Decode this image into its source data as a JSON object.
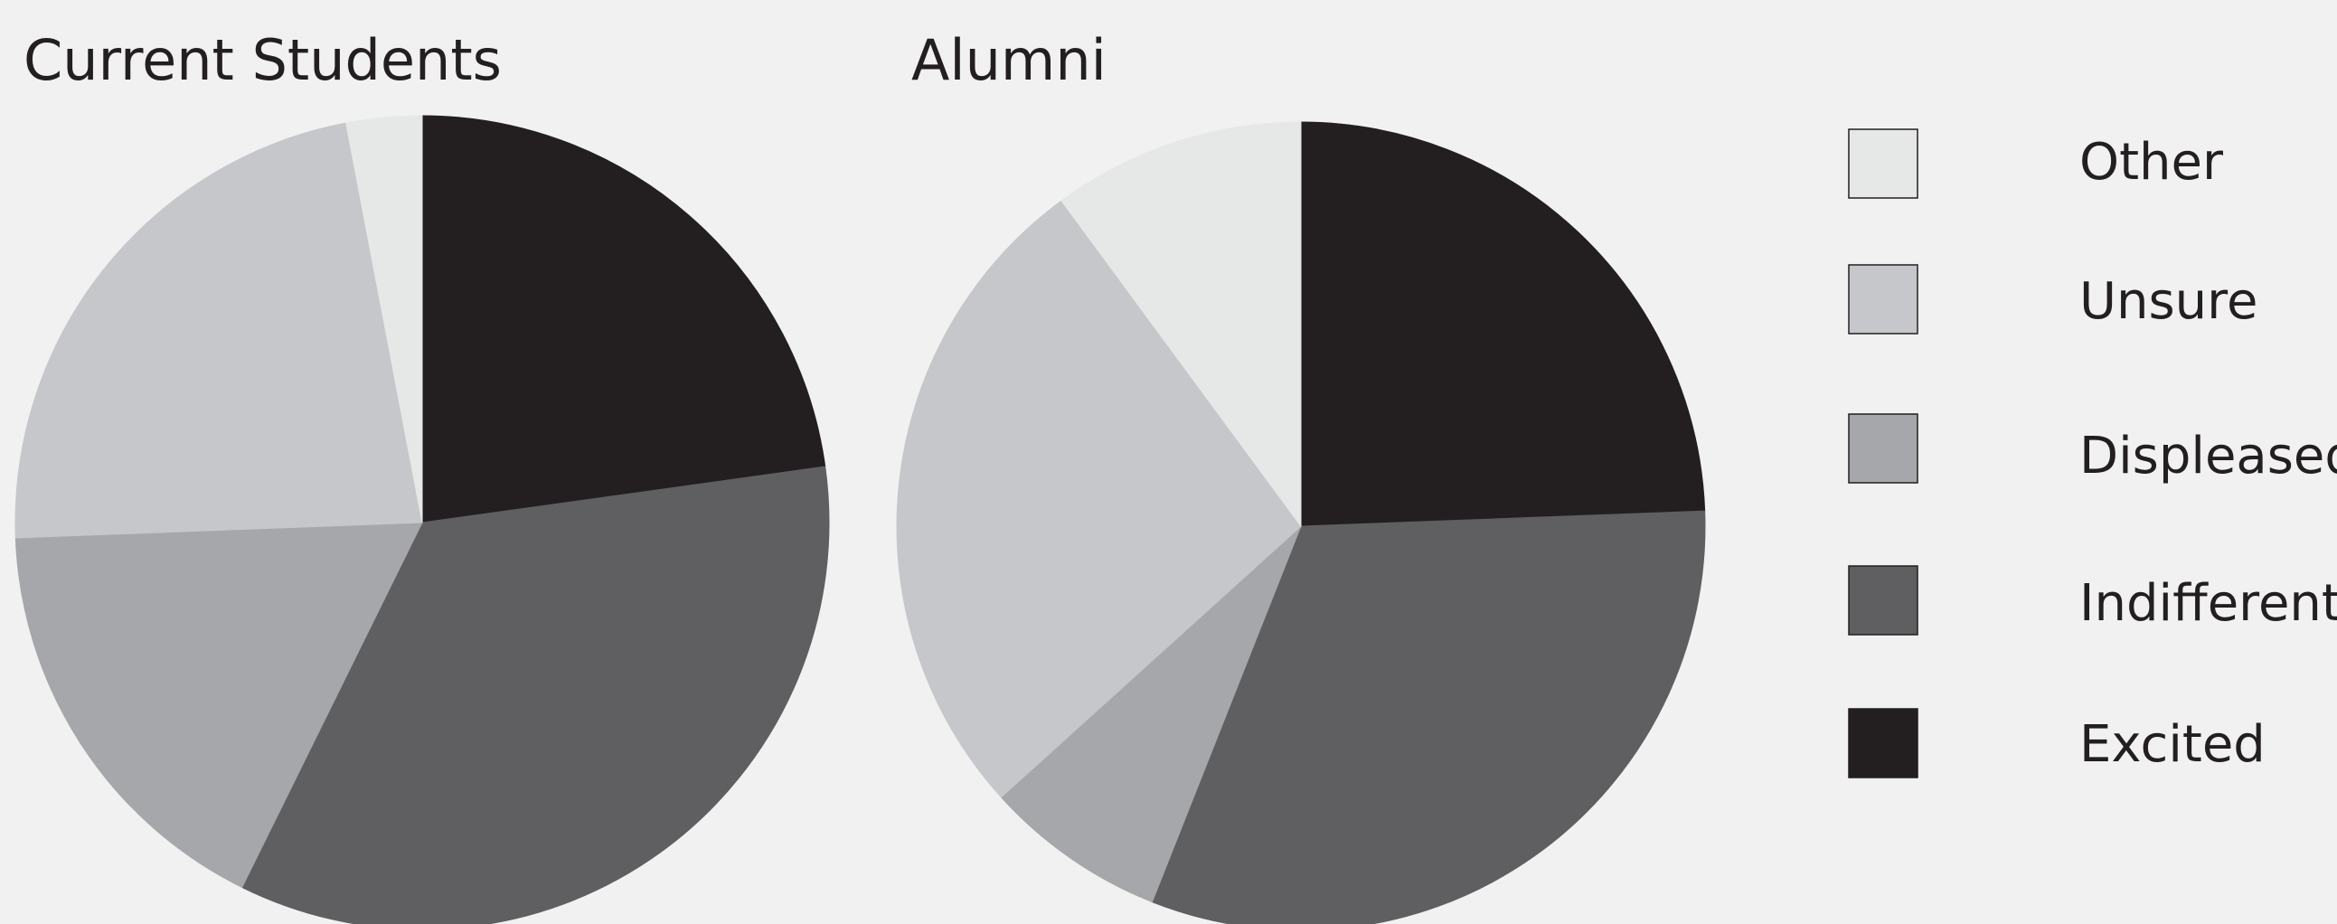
{
  "chart_data": [
    {
      "type": "pie",
      "title": "Current Students",
      "slices": [
        {
          "label": "Excited",
          "value": 22.8
        },
        {
          "label": "Indifferent",
          "value": 34.5
        },
        {
          "label": "Displeased",
          "value": 17.1
        },
        {
          "label": "Unsure",
          "value": 22.6
        },
        {
          "label": "Other",
          "value": 3.0
        }
      ]
    },
    {
      "type": "pie",
      "title": "Alumni",
      "slices": [
        {
          "label": "Excited",
          "value": 24.4
        },
        {
          "label": "Indifferent",
          "value": 31.6
        },
        {
          "label": "Displeased",
          "value": 7.3
        },
        {
          "label": "Unsure",
          "value": 26.6
        },
        {
          "label": "Other",
          "value": 10.1
        }
      ]
    }
  ],
  "legend": {
    "placement": "right",
    "items": [
      {
        "label": "Other",
        "color": "#e6e8e7"
      },
      {
        "label": "Unsure",
        "color": "#c6c7ca"
      },
      {
        "label": "Displeased",
        "color": "#a6a7aa"
      },
      {
        "label": "Indifferent",
        "color": "#5f5f62"
      },
      {
        "label": "Excited",
        "color": "#231f20"
      }
    ]
  }
}
